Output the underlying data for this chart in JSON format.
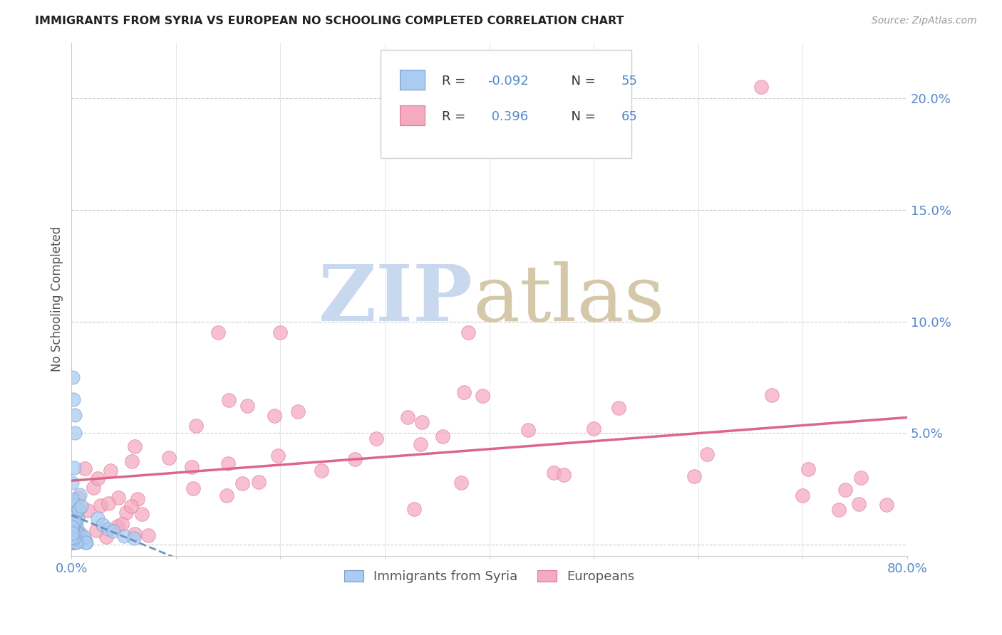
{
  "title": "IMMIGRANTS FROM SYRIA VS EUROPEAN NO SCHOOLING COMPLETED CORRELATION CHART",
  "source": "Source: ZipAtlas.com",
  "ylabel": "No Schooling Completed",
  "xlim": [
    0,
    0.8
  ],
  "ylim": [
    -0.005,
    0.225
  ],
  "legend_r_syria": "-0.092",
  "legend_n_syria": "55",
  "legend_r_euro": "0.396",
  "legend_n_euro": "65",
  "legend_label_syria": "Immigrants from Syria",
  "legend_label_euro": "Europeans",
  "color_syria": "#aaccf0",
  "color_euro": "#f5aac0",
  "color_syria_edge": "#7799cc",
  "color_euro_edge": "#dd7799",
  "color_syria_line": "#6688bb",
  "color_euro_line": "#dd6688",
  "color_title": "#222222",
  "color_yticks": "#5588cc",
  "color_source": "#999999",
  "ytick_positions": [
    0.0,
    0.05,
    0.1,
    0.15,
    0.2
  ],
  "ytick_labels": [
    "",
    "5.0%",
    "10.0%",
    "15.0%",
    "20.0%"
  ],
  "xtick_positions": [
    0.0,
    0.1,
    0.2,
    0.3,
    0.4,
    0.5,
    0.6,
    0.7,
    0.8
  ],
  "grid_color": "#cccccc",
  "grid_style": "--",
  "watermark_zip_color": "#c8d8ee",
  "watermark_atlas_color": "#d4c8a8"
}
